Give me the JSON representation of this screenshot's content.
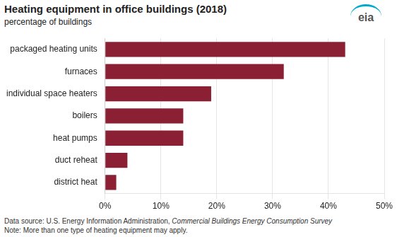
{
  "chart_data": {
    "type": "bar",
    "orientation": "horizontal",
    "title": "Heating equipment in office buildings (2018)",
    "subtitle": "percentage of buildings",
    "categories": [
      "district heat",
      "duct reheat",
      "heat pumps",
      "boilers",
      "individual space heaters",
      "furnaces",
      "packaged heating units"
    ],
    "values": [
      2,
      4,
      14,
      14,
      19,
      32,
      43
    ],
    "color": "#8B2035",
    "xlim": [
      0,
      50
    ],
    "xticks": [
      {
        "value": 0,
        "label": "0%"
      },
      {
        "value": 10,
        "label": "10%"
      },
      {
        "value": 20,
        "label": "20%"
      },
      {
        "value": 30,
        "label": "30%"
      },
      {
        "value": 40,
        "label": "40%"
      },
      {
        "value": 50,
        "label": "50%"
      }
    ],
    "grid": true,
    "annotations": [
      "Data source: U.S. Energy Information Administration, ",
      "Commercial Buildings Energy Consumption Survey",
      "Note: More than one type of heating equipment may apply.",
      "eia"
    ]
  }
}
